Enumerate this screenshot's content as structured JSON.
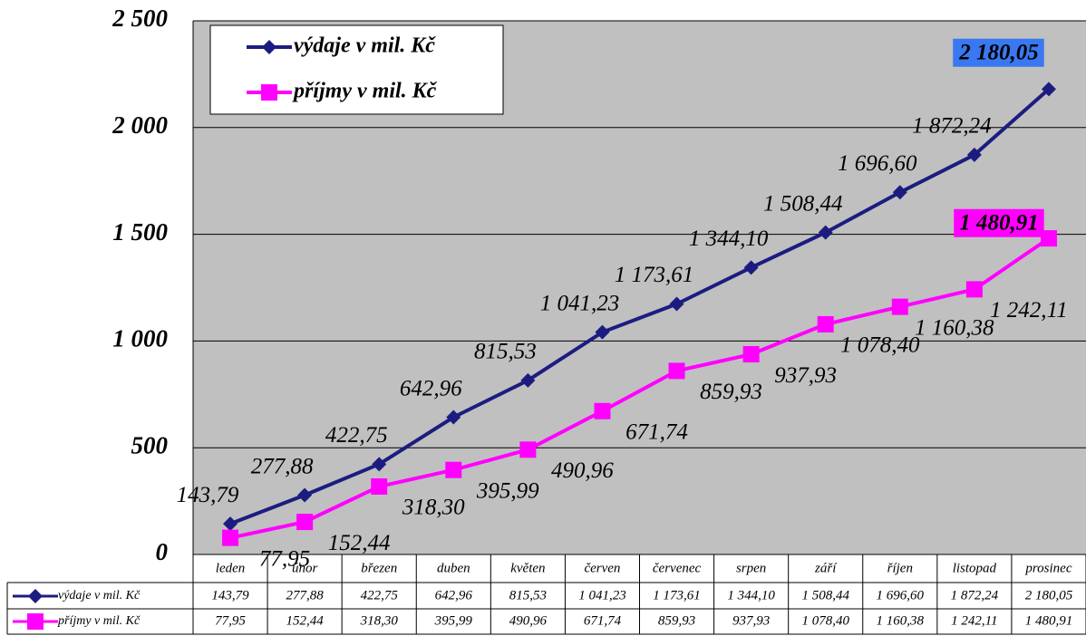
{
  "chart_data": {
    "type": "line",
    "categories": [
      "leden",
      "únor",
      "březen",
      "duben",
      "květen",
      "červen",
      "červenec",
      "srpen",
      "září",
      "říjen",
      "listopad",
      "prosinec"
    ],
    "series": [
      {
        "name": "výdaje v mil. Kč",
        "color": "#1c1c80",
        "values": [
          143.79,
          277.88,
          422.75,
          642.96,
          815.53,
          1041.23,
          1173.61,
          1344.1,
          1508.44,
          1696.6,
          1872.24,
          2180.05
        ],
        "value_labels": [
          "143,79",
          "277,88",
          "422,75",
          "642,96",
          "815,53",
          "1 041,23",
          "1 173,61",
          "1 344,10",
          "1 508,44",
          "1 696,60",
          "1 872,24",
          "2 180,05"
        ]
      },
      {
        "name": "příjmy v mil. Kč",
        "color": "#ff00ff",
        "values": [
          77.95,
          152.44,
          318.3,
          395.99,
          490.96,
          671.74,
          859.93,
          937.93,
          1078.4,
          1160.38,
          1242.11,
          1480.91
        ],
        "value_labels": [
          "77,95",
          "152,44",
          "318,30",
          "395,99",
          "490,96",
          "671,74",
          "859,93",
          "937,93",
          "1 078,40",
          "1 160,38",
          "1 242,11",
          "1 480,91"
        ]
      }
    ],
    "ylim": [
      0,
      2500
    ],
    "yticks": [
      0,
      500,
      {
        "value": 1000,
        "label": "1 000"
      },
      {
        "value": 1500,
        "label": "1 500"
      },
      {
        "value": 2000,
        "label": "2 000"
      },
      {
        "value": 2500,
        "label": "2 500"
      }
    ],
    "grid": true
  }
}
